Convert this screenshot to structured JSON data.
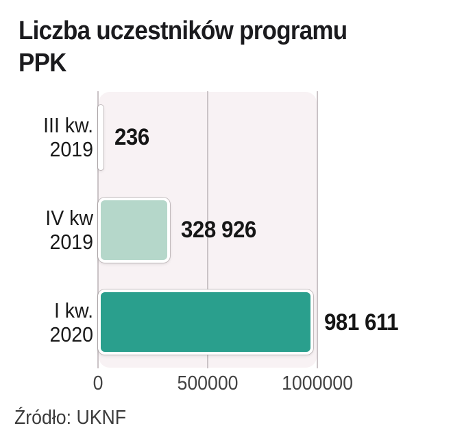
{
  "title_lines": [
    "Liczba uczestników programu",
    "PPK"
  ],
  "source": "Źródło: UKNF",
  "colors": {
    "bar_teal": "#2a9f8d",
    "bar_light_green": "#b5d7ca",
    "plot_background": "#f8f2f4",
    "gridline": "#cac3c6",
    "title_text": "#1b1b1e",
    "tick_text": "#434343"
  },
  "chart_data": {
    "type": "bar",
    "orientation": "horizontal",
    "title": "Liczba uczestników programu PPK",
    "categories": [
      "III kw. 2019",
      "IV kw 2019",
      "I kw. 2020"
    ],
    "category_lines": [
      [
        "III kw.",
        "2019"
      ],
      [
        "IV kw",
        "2019"
      ],
      [
        "I kw.",
        "2020"
      ]
    ],
    "values": [
      236,
      328926,
      981611
    ],
    "value_labels": [
      "236",
      "328 926",
      "981 611"
    ],
    "bar_colors": [
      "#b5d7ca",
      "#b5d7ca",
      "#2a9f8d"
    ],
    "x_ticks": [
      0,
      500000,
      1000000
    ],
    "x_tick_labels": [
      "0",
      "500000",
      "1000000"
    ],
    "xlim": [
      0,
      1000000
    ],
    "grid": true,
    "legend": false,
    "source": "Źródło: UKNF"
  }
}
